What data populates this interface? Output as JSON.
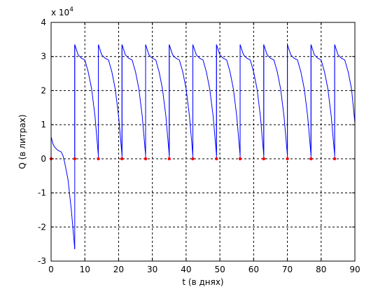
{
  "chart_data": {
    "type": "line",
    "title": "",
    "xlabel": "t (в днях)",
    "ylabel": "Q (в литрах)",
    "y_multiplier_label": "x 10",
    "y_multiplier_exponent": "4",
    "xlim": [
      0,
      90
    ],
    "ylim": [
      -3,
      4
    ],
    "xticks": [
      0,
      10,
      20,
      30,
      40,
      50,
      60,
      70,
      80,
      90
    ],
    "yticks": [
      -3,
      -2,
      -1,
      0,
      1,
      2,
      3,
      4
    ],
    "grid": true,
    "colors": {
      "line": "#0000ff",
      "markers": "#ff0000",
      "grid": "#000000"
    },
    "series": [
      {
        "style": "blue-line",
        "segments": [
          {
            "x": [
              0,
              0.5,
              1,
              2,
              3,
              3.5,
              4,
              5,
              6,
              7
            ],
            "y": [
              0.65,
              0.45,
              0.35,
              0.25,
              0.2,
              0.1,
              -0.1,
              -0.6,
              -1.5,
              -2.65
            ]
          },
          {
            "x": [
              7,
              7,
              8,
              9,
              10,
              11,
              12,
              13,
              14,
              14
            ],
            "y": [
              -2.65,
              3.35,
              3.05,
              2.95,
              2.9,
              2.55,
              2.05,
              1.25,
              0.1,
              3.35
            ]
          },
          {
            "x": [
              14,
              15,
              16,
              17,
              18,
              19,
              20,
              21,
              21
            ],
            "y": [
              3.35,
              3.05,
              2.95,
              2.9,
              2.55,
              2.05,
              1.25,
              0.1,
              3.35
            ]
          },
          {
            "x": [
              21,
              22,
              23,
              24,
              25,
              26,
              27,
              28,
              28
            ],
            "y": [
              3.35,
              3.05,
              2.95,
              2.9,
              2.55,
              2.05,
              1.25,
              0.1,
              3.35
            ]
          },
          {
            "x": [
              28,
              29,
              30,
              31,
              32,
              33,
              34,
              35,
              35
            ],
            "y": [
              3.35,
              3.05,
              2.95,
              2.9,
              2.55,
              2.05,
              1.25,
              0.1,
              3.35
            ]
          },
          {
            "x": [
              35,
              36,
              37,
              38,
              39,
              40,
              41,
              42,
              42
            ],
            "y": [
              3.35,
              3.05,
              2.95,
              2.9,
              2.55,
              2.05,
              1.25,
              0.1,
              3.35
            ]
          },
          {
            "x": [
              42,
              43,
              44,
              45,
              46,
              47,
              48,
              49,
              49
            ],
            "y": [
              3.35,
              3.05,
              2.95,
              2.9,
              2.55,
              2.05,
              1.25,
              0.1,
              3.35
            ]
          },
          {
            "x": [
              49,
              50,
              51,
              52,
              53,
              54,
              55,
              56,
              56
            ],
            "y": [
              3.35,
              3.05,
              2.95,
              2.9,
              2.55,
              2.05,
              1.25,
              0.1,
              3.35
            ]
          },
          {
            "x": [
              56,
              57,
              58,
              59,
              60,
              61,
              62,
              63,
              63
            ],
            "y": [
              3.35,
              3.05,
              2.95,
              2.9,
              2.55,
              2.05,
              1.25,
              0.1,
              3.35
            ]
          },
          {
            "x": [
              63,
              64,
              65,
              66,
              67,
              68,
              69,
              70,
              70
            ],
            "y": [
              3.35,
              3.05,
              2.95,
              2.9,
              2.55,
              2.05,
              1.25,
              0.1,
              3.35
            ]
          },
          {
            "x": [
              70,
              71,
              72,
              73,
              74,
              75,
              76,
              77,
              77
            ],
            "y": [
              3.35,
              3.05,
              2.95,
              2.9,
              2.55,
              2.05,
              1.25,
              0.1,
              3.35
            ]
          },
          {
            "x": [
              77,
              78,
              79,
              80,
              81,
              82,
              83,
              84,
              84
            ],
            "y": [
              3.35,
              3.05,
              2.95,
              2.9,
              2.55,
              2.05,
              1.25,
              0.1,
              3.35
            ]
          },
          {
            "x": [
              84,
              85,
              86,
              87,
              88,
              89,
              90
            ],
            "y": [
              3.35,
              3.05,
              2.95,
              2.9,
              2.55,
              2.05,
              1.05
            ]
          }
        ]
      },
      {
        "style": "red-markers",
        "x": [
          0,
          7,
          14,
          21,
          28,
          35,
          42,
          49,
          56,
          63,
          70,
          77,
          84
        ],
        "y": [
          0,
          0,
          0,
          0,
          0,
          0,
          0,
          0,
          0,
          0,
          0,
          0,
          0
        ]
      }
    ],
    "stems": {
      "x": [
        7,
        14,
        21,
        28,
        35,
        42,
        49,
        56,
        63,
        70,
        77,
        84
      ],
      "y_from": [
        0,
        0,
        0,
        0,
        0,
        0,
        0,
        0,
        0,
        0,
        0,
        0
      ],
      "y_to": [
        3.35,
        3.35,
        3.35,
        3.35,
        3.35,
        3.35,
        3.35,
        3.35,
        3.35,
        3.35,
        3.35,
        3.35
      ]
    }
  }
}
